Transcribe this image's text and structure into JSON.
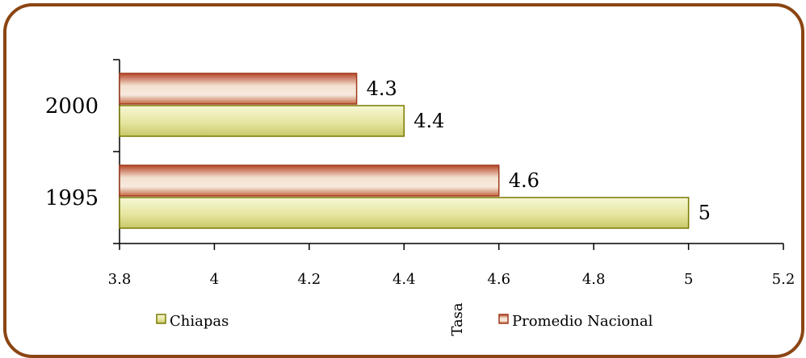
{
  "chart_data": {
    "type": "bar",
    "orientation": "horizontal",
    "categories": [
      "1995",
      "2000"
    ],
    "series": [
      {
        "name": "Chiapas",
        "values": [
          5,
          4.4
        ],
        "color": "#7A8A00"
      },
      {
        "name": "Promedio Nacional",
        "values": [
          4.6,
          4.3
        ],
        "color": "#A0391A"
      }
    ],
    "xlim": [
      3.8,
      5.2
    ],
    "xticks": [
      "3.8",
      "4",
      "4.2",
      "4.4",
      "4.6",
      "4.8",
      "5",
      "5.2"
    ],
    "ylabel": "Tasa",
    "legend": "bottom",
    "grid": false
  }
}
